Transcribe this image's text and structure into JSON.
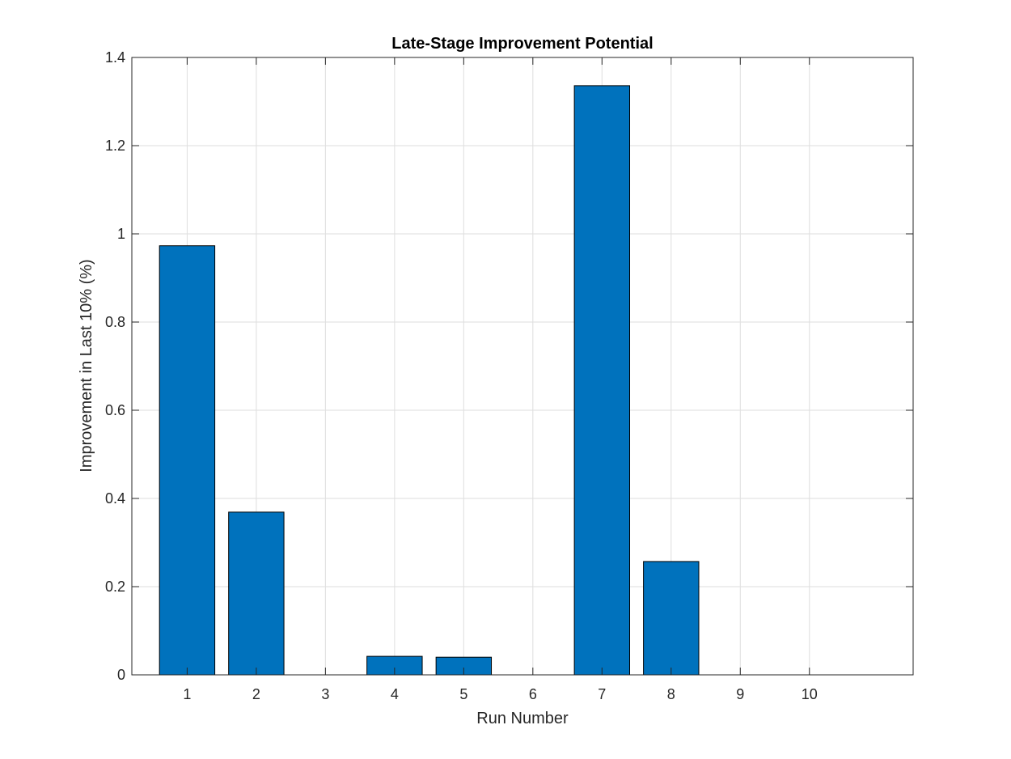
{
  "chart_data": {
    "type": "bar",
    "title": "Late-Stage Improvement Potential",
    "xlabel": "Run Number",
    "ylabel": "Improvement in Last 10% (%)",
    "categories": [
      "1",
      "2",
      "3",
      "4",
      "5",
      "6",
      "7",
      "8",
      "9",
      "10"
    ],
    "values": [
      0.973,
      0.369,
      0,
      0.042,
      0.04,
      0,
      1.336,
      0.257,
      0,
      0
    ],
    "ylim": [
      0,
      1.4
    ],
    "xlim": [
      0.2,
      11.5
    ],
    "yticks": [
      "0",
      "0.2",
      "0.4",
      "0.6",
      "0.8",
      "1",
      "1.2",
      "1.4"
    ],
    "grid": true,
    "baseline": "dashed",
    "colors": {
      "bar": "#0072BD",
      "bar_edge": "#000000",
      "grid": "#dedede",
      "axis": "#262626"
    }
  }
}
